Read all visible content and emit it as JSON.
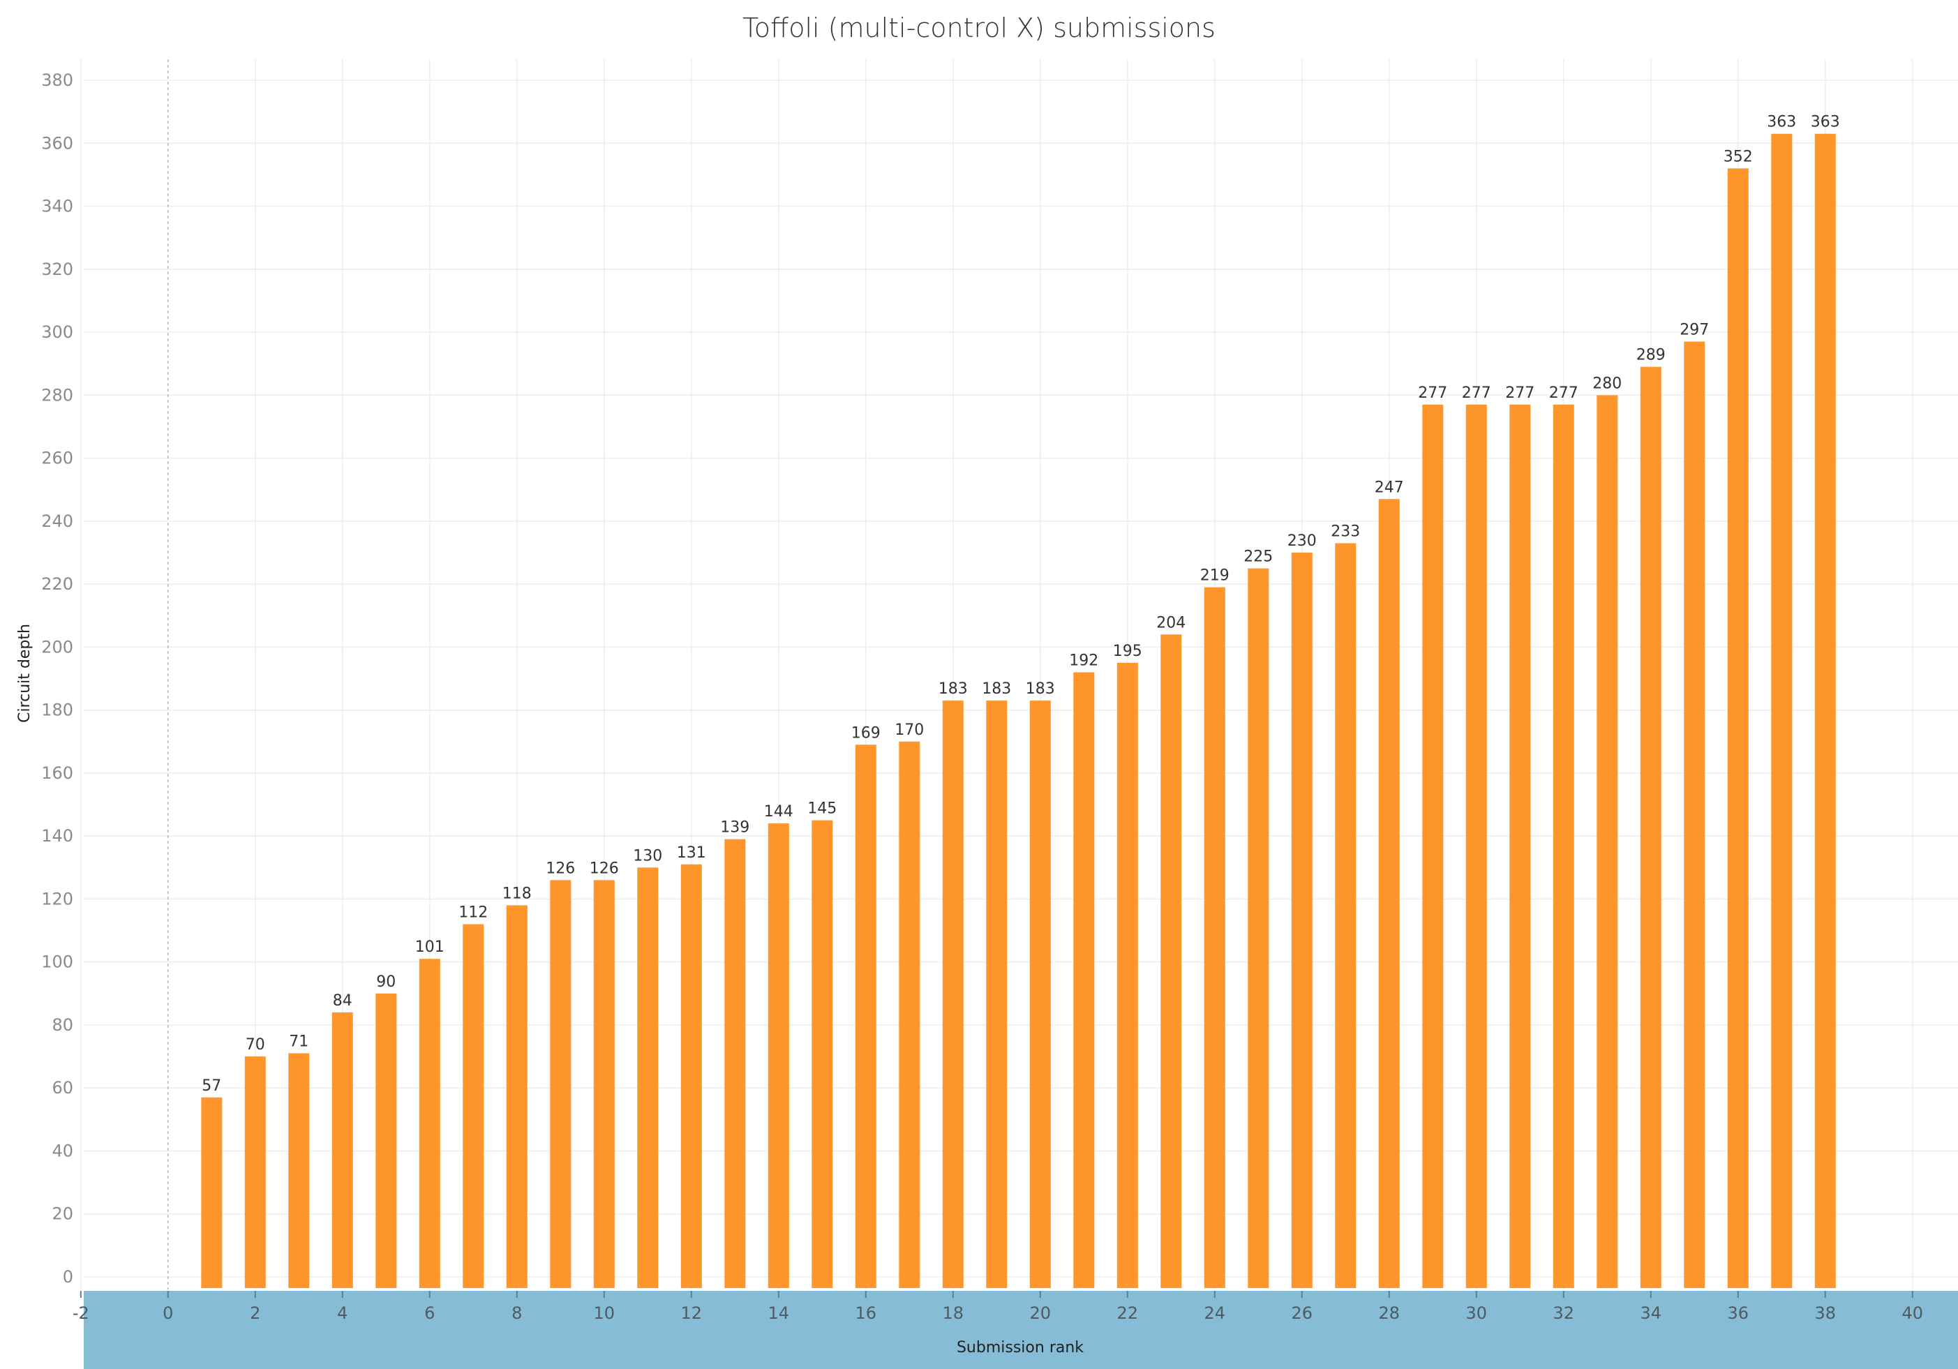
{
  "chart_data": {
    "type": "bar",
    "title": "Toffoli (multi-control X) submissions",
    "xlabel": "Submission rank",
    "ylabel": "Circuit depth",
    "x": [
      1,
      2,
      3,
      4,
      5,
      6,
      7,
      8,
      9,
      10,
      11,
      12,
      13,
      14,
      15,
      16,
      17,
      18,
      19,
      20,
      21,
      22,
      23,
      24,
      25,
      26,
      27,
      28,
      29,
      30,
      31,
      32,
      33,
      34,
      35,
      36,
      37,
      38
    ],
    "values": [
      57,
      70,
      71,
      84,
      90,
      101,
      112,
      118,
      126,
      126,
      130,
      131,
      139,
      144,
      145,
      169,
      170,
      183,
      183,
      183,
      192,
      195,
      204,
      219,
      225,
      230,
      233,
      247,
      277,
      277,
      277,
      277,
      280,
      289,
      297,
      352,
      363,
      363
    ],
    "data_labels": [
      "57",
      "70",
      "71",
      "84",
      "90",
      "101",
      "112",
      "118",
      "126",
      "126",
      "130",
      "131",
      "139",
      "144",
      "145",
      "169",
      "170",
      "183",
      "183",
      "183",
      "192",
      "195",
      "204",
      "219",
      "225",
      "230",
      "233",
      "247",
      "277",
      "277",
      "277",
      "277",
      "280",
      "289",
      "297",
      "352",
      "363",
      "363"
    ],
    "xlim": [
      -2,
      40
    ],
    "ylim": [
      0,
      380
    ],
    "x_ticks": [
      "-2",
      "0",
      "2",
      "4",
      "6",
      "8",
      "10",
      "12",
      "14",
      "16",
      "18",
      "20",
      "22",
      "24",
      "26",
      "28",
      "30",
      "32",
      "34",
      "36",
      "38",
      "40"
    ],
    "y_ticks": [
      "0",
      "20",
      "40",
      "60",
      "80",
      "100",
      "120",
      "140",
      "160",
      "180",
      "200",
      "220",
      "240",
      "260",
      "280",
      "300",
      "320",
      "340",
      "360",
      "380"
    ],
    "grid": true,
    "colors": {
      "bar": "#FF962B",
      "x_axis_band": "#86BCD6",
      "grid": "#EDEDED",
      "zero_line": "#B5B5B5"
    }
  }
}
